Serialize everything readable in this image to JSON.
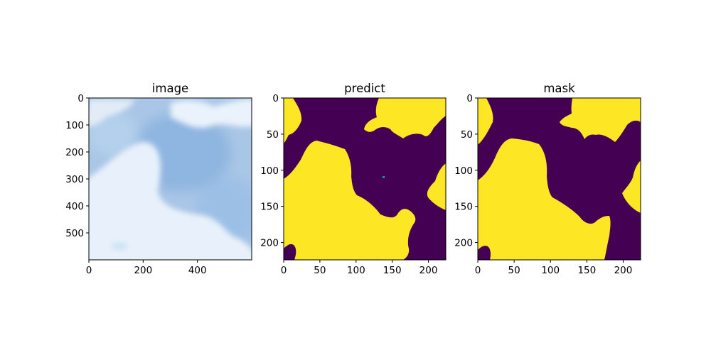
{
  "chart_data": [
    {
      "type": "image",
      "title": "image",
      "xlim": [
        0,
        600
      ],
      "ylim": [
        600,
        0
      ],
      "xticks": [
        0,
        200,
        400
      ],
      "yticks": [
        0,
        100,
        200,
        300,
        400,
        500
      ],
      "content": "sky photo with white clouds on blue background"
    },
    {
      "type": "heatmap",
      "title": "predict",
      "colormap": "viridis",
      "value_colors": {
        "0": "#440154",
        "1": "#fde725"
      },
      "xlim": [
        0,
        224
      ],
      "ylim": [
        224,
        0
      ],
      "xticks": [
        0,
        50,
        100,
        150,
        200
      ],
      "yticks": [
        0,
        50,
        100,
        150,
        200
      ]
    },
    {
      "type": "heatmap",
      "title": "mask",
      "colormap": "viridis",
      "value_colors": {
        "0": "#440154",
        "1": "#fde725"
      },
      "xlim": [
        0,
        224
      ],
      "ylim": [
        224,
        0
      ],
      "xticks": [
        0,
        50,
        100,
        150,
        200
      ],
      "yticks": [
        0,
        50,
        100,
        150,
        200
      ]
    }
  ]
}
